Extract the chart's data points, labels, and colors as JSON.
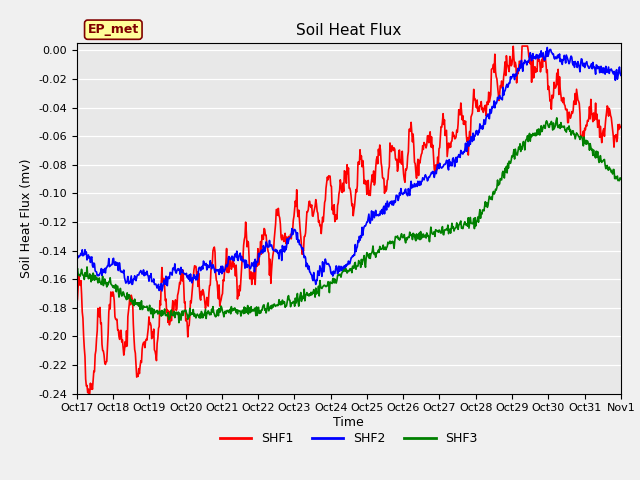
{
  "title": "Soil Heat Flux",
  "ylabel": "Soil Heat Flux (mv)",
  "xlabel": "Time",
  "xlim": [
    0,
    15
  ],
  "ylim": [
    -0.24,
    0.005
  ],
  "yticks": [
    0.0,
    -0.02,
    -0.04,
    -0.06,
    -0.08,
    -0.1,
    -0.12,
    -0.14,
    -0.16,
    -0.18,
    -0.2,
    -0.22,
    -0.24
  ],
  "xtick_labels": [
    "Oct 17",
    "Oct 18",
    "Oct 19",
    "Oct 20",
    "Oct 21",
    "Oct 22",
    "Oct 23",
    "Oct 24",
    "Oct 25",
    "Oct 26",
    "Oct 27",
    "Oct 28",
    "Oct 29",
    "Oct 30",
    "Oct 31",
    "Nov 1"
  ],
  "xtick_positions": [
    0,
    1,
    2,
    3,
    4,
    5,
    6,
    7,
    8,
    9,
    10,
    11,
    12,
    13,
    14,
    15
  ],
  "annotation_text": "EP_met",
  "annotation_color": "#800000",
  "annotation_bg": "#ffff99",
  "line_colors": {
    "SHF1": "red",
    "SHF2": "blue",
    "SHF3": "green"
  },
  "line_width": 1.2,
  "bg_color": "#e8e8e8",
  "fig_bg_color": "#f0f0f0",
  "title_fontsize": 11,
  "axis_label_fontsize": 9,
  "tick_fontsize": 8,
  "legend_fontsize": 9
}
